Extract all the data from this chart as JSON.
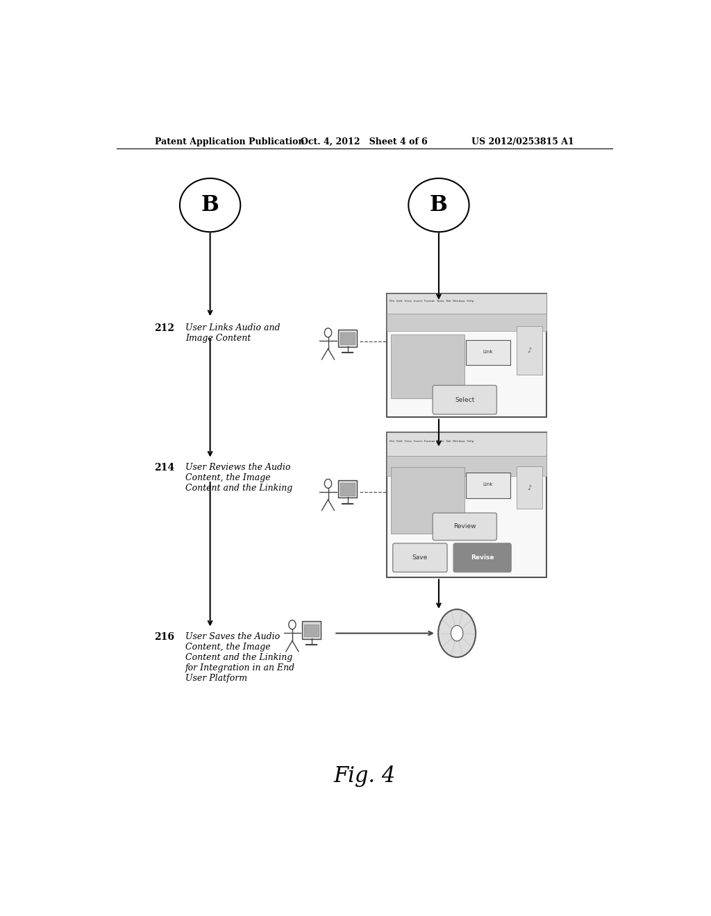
{
  "bg_color": "#ffffff",
  "header_left": "Patent Application Publication",
  "header_mid": "Oct. 4, 2012   Sheet 4 of 6",
  "header_right": "US 2012/0253815 A1",
  "fig_label": "Fig. 4",
  "step_212_label": "212",
  "step_214_label": "214",
  "step_216_label": "216",
  "step_212_text": "User Links Audio and\nImage Content",
  "step_214_text": "User Reviews the Audio\nContent, the Image\nContent and the Linking",
  "step_216_text": "User Saves the Audio\nContent, the Image\nContent and the Linking\nfor Integration in an End\nUser Platform"
}
